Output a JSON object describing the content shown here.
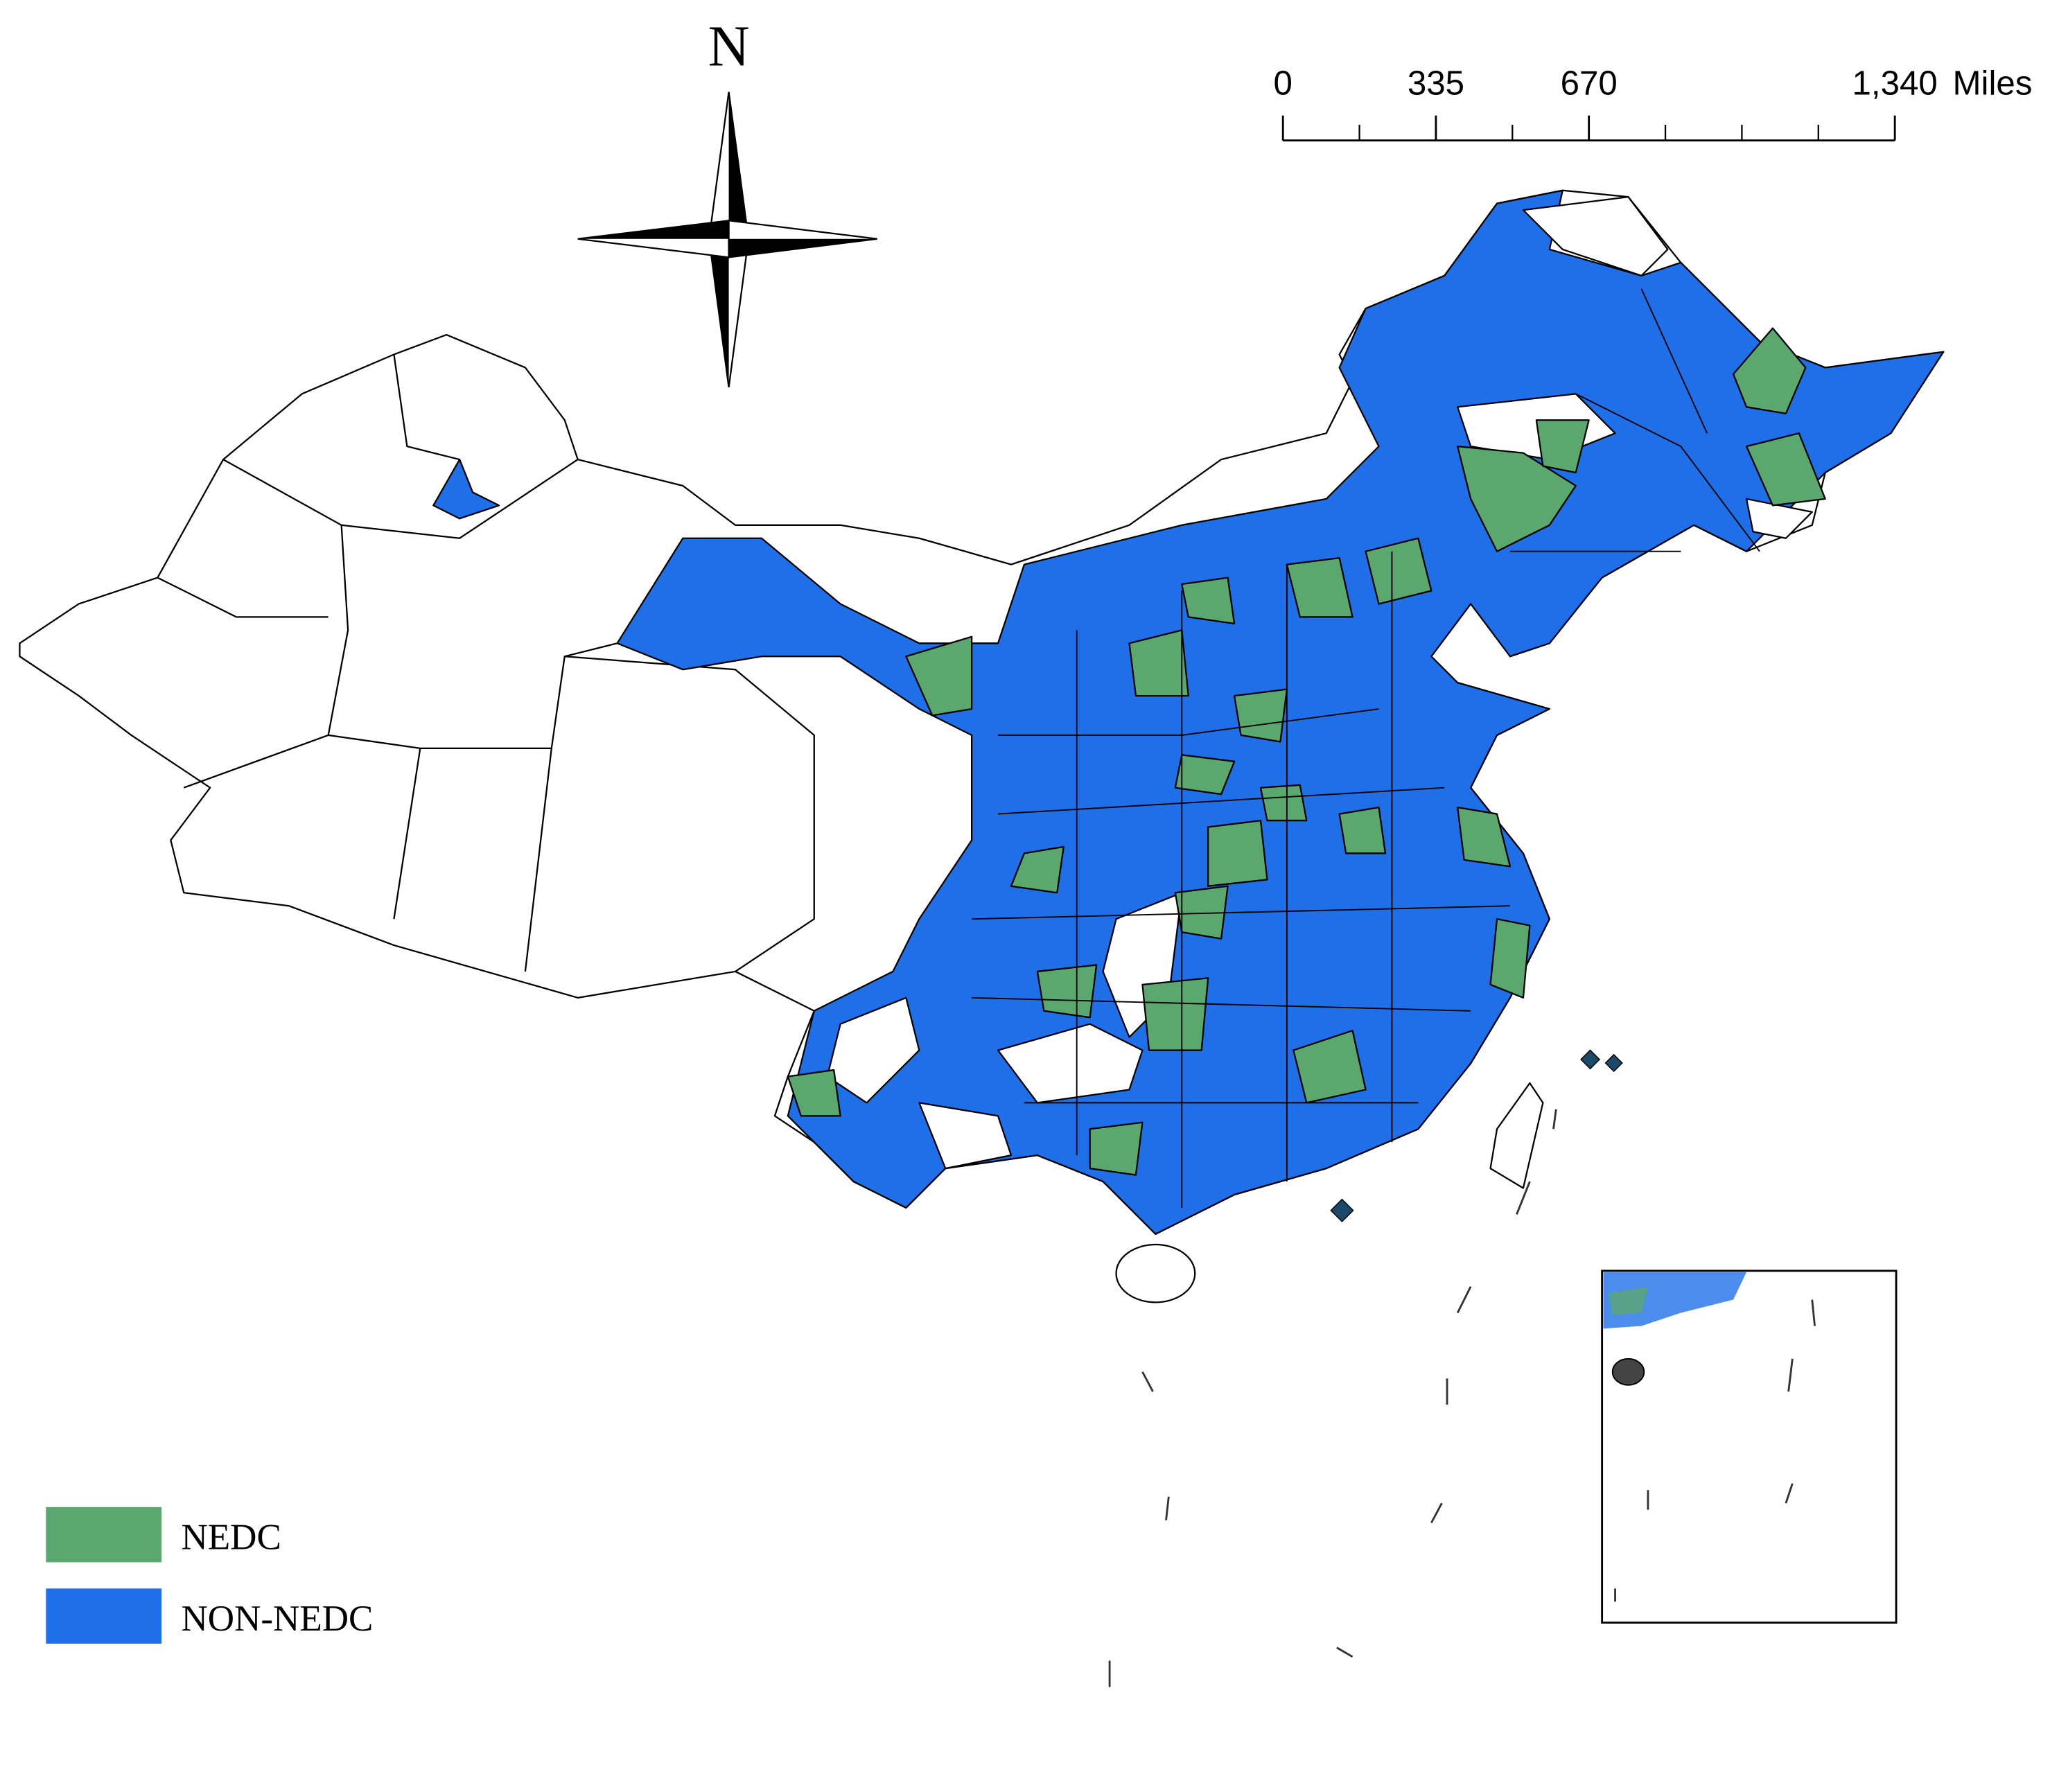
{
  "north_arrow": {
    "label": "N"
  },
  "scale_bar": {
    "ticks": [
      0,
      335,
      670,
      {
        "value": 1340,
        "label": "1,340"
      }
    ],
    "unit": "Miles",
    "max": 1340
  },
  "legend": [
    {
      "name": "NEDC",
      "color": "#5aa86e"
    },
    {
      "name": "NON-NEDC",
      "color": "#1f6fe8"
    }
  ]
}
